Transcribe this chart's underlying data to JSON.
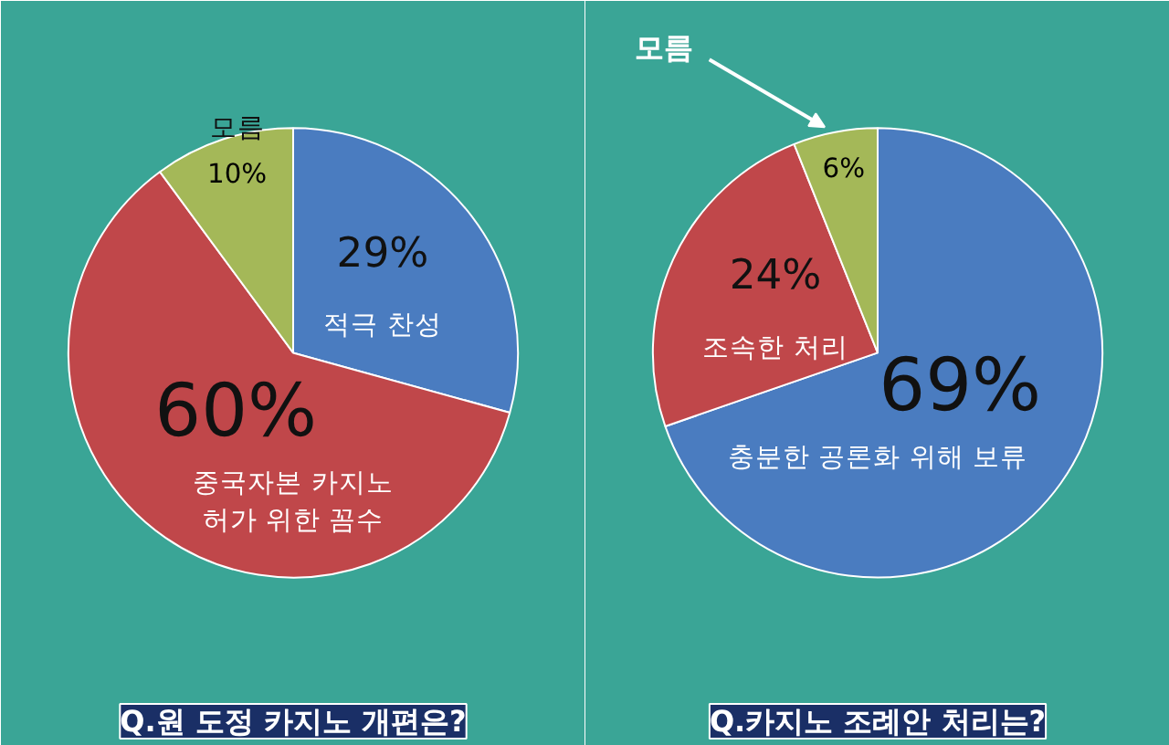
{
  "chart_data": [
    {
      "type": "pie",
      "title": "Q.원 도정 카지노 개편은?",
      "categories": [
        "적극 찬성",
        "중국자본 카지노\n허가 위한 꼼수",
        "모름"
      ],
      "values": [
        29,
        60,
        10
      ],
      "value_labels": [
        "29%",
        "60%",
        "10%"
      ],
      "colors": [
        "#4a7cc0",
        "#c0474a",
        "#a4b858"
      ]
    },
    {
      "type": "pie",
      "title": "Q.카지노 조례안 처리는?",
      "categories": [
        "충분한 공론화 위해 보류",
        "조속한 처리",
        "모름"
      ],
      "values": [
        69,
        24,
        6
      ],
      "value_labels": [
        "69%",
        "24%",
        "6%"
      ],
      "colors": [
        "#4a7cc0",
        "#c0474a",
        "#a4b858"
      ]
    }
  ]
}
